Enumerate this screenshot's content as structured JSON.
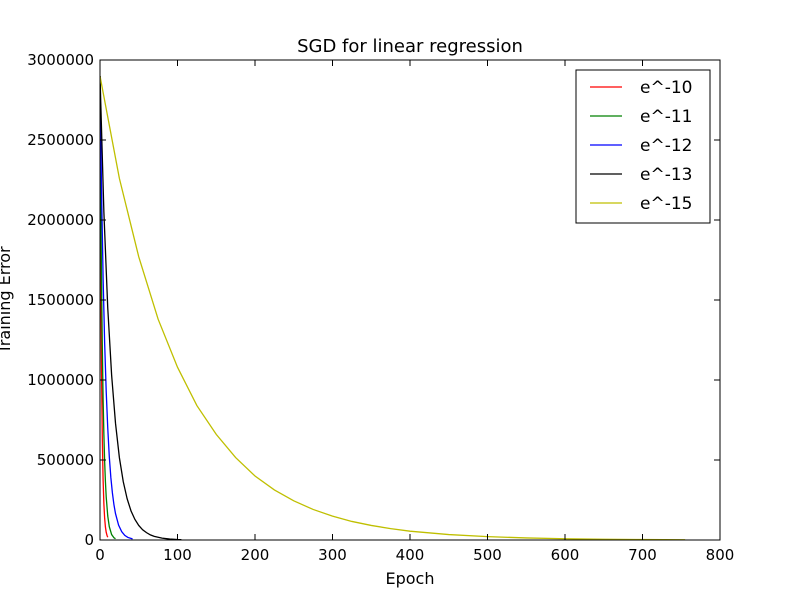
{
  "chart_data": {
    "type": "line",
    "title": "SGD for linear regression",
    "xlabel": "Epoch",
    "ylabel": "Training Error",
    "xlim": [
      0,
      800
    ],
    "ylim": [
      0,
      3000000
    ],
    "xticks": [
      0,
      100,
      200,
      300,
      400,
      500,
      600,
      700,
      800
    ],
    "yticks": [
      0,
      500000,
      1000000,
      1500000,
      2000000,
      2500000,
      3000000
    ],
    "grid": false,
    "legend_position": "top-right",
    "series": [
      {
        "name": "e^-10",
        "color": "#ff0000",
        "x": [
          0,
          1,
          2,
          3,
          4,
          5,
          6,
          7,
          8,
          9,
          10
        ],
        "y": [
          2900000,
          1740000,
          1044000,
          626400,
          375840,
          225504,
          135302,
          81181,
          48709,
          29225,
          17535
        ]
      },
      {
        "name": "e^-11",
        "color": "#008000",
        "x": [
          0,
          1,
          2,
          3,
          4,
          5,
          6,
          7,
          8,
          10,
          12,
          15,
          18,
          20
        ],
        "y": [
          2900000,
          2150000,
          1600000,
          1200000,
          880000,
          660000,
          490000,
          365000,
          270000,
          150000,
          83000,
          34000,
          14000,
          8000
        ]
      },
      {
        "name": "e^-12",
        "color": "#0000ff",
        "x": [
          0,
          2,
          4,
          6,
          8,
          10,
          12,
          14,
          16,
          18,
          20,
          24,
          28,
          32,
          36,
          42
        ],
        "y": [
          2900000,
          2180000,
          1640000,
          1230000,
          930000,
          700000,
          520000,
          390000,
          294000,
          220000,
          165000,
          93000,
          52000,
          29000,
          16000,
          7000
        ]
      },
      {
        "name": "e^-13",
        "color": "#000000",
        "x": [
          0,
          5,
          10,
          15,
          20,
          25,
          30,
          35,
          40,
          45,
          50,
          55,
          60,
          65,
          70,
          80,
          90,
          100,
          105
        ],
        "y": [
          2900000,
          2050000,
          1450000,
          1030000,
          730000,
          515000,
          365000,
          258000,
          182000,
          129000,
          91000,
          64000,
          46000,
          32000,
          23000,
          11500,
          5800,
          2900,
          2000
        ]
      },
      {
        "name": "e^-15",
        "color": "#bfbf00",
        "x": [
          0,
          25,
          50,
          75,
          100,
          125,
          150,
          175,
          200,
          225,
          250,
          275,
          300,
          325,
          350,
          375,
          400,
          450,
          500,
          550,
          600,
          650,
          700,
          755
        ],
        "y": [
          2900000,
          2260000,
          1770000,
          1380000,
          1080000,
          840000,
          660000,
          515000,
          400000,
          313000,
          245000,
          191000,
          149000,
          116000,
          91000,
          71000,
          55000,
          34000,
          21000,
          12800,
          7800,
          4800,
          2900,
          1700
        ]
      }
    ]
  }
}
